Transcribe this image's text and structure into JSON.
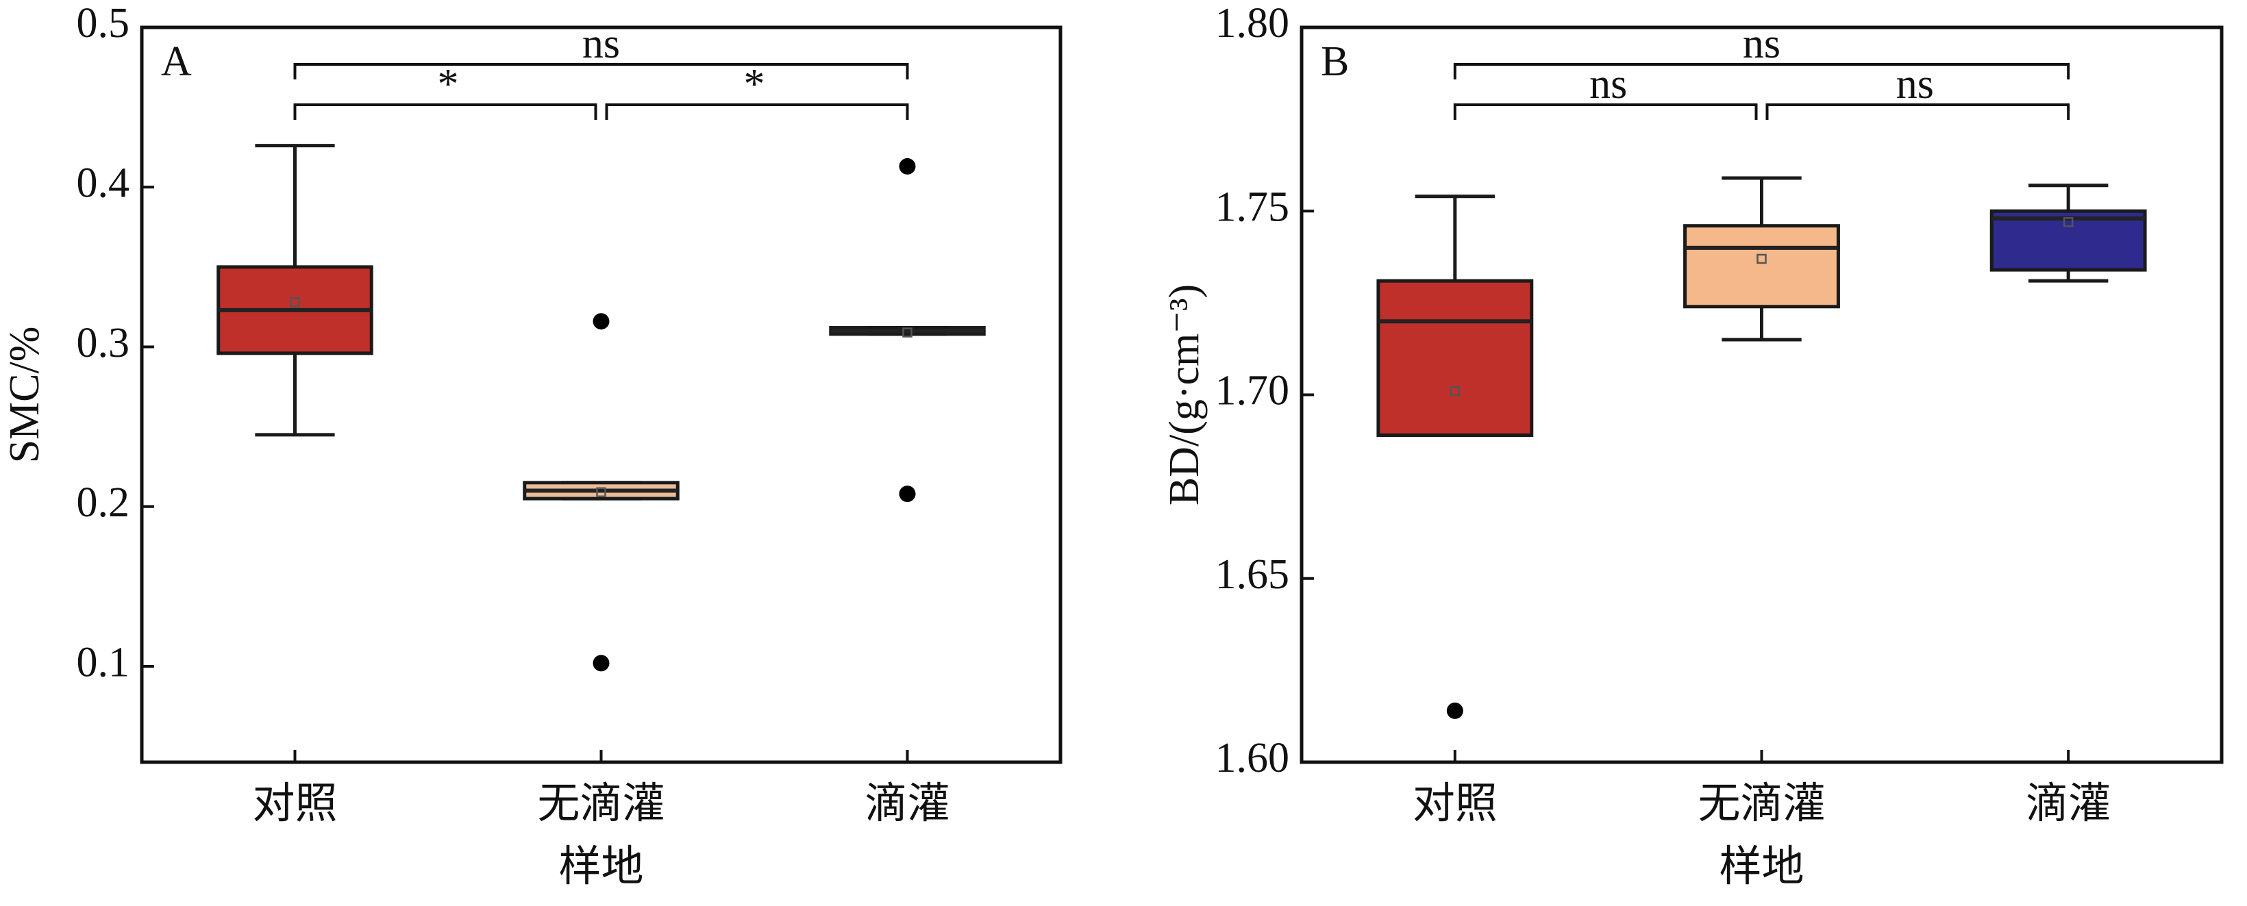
{
  "chart_data": [
    {
      "type": "box",
      "title": "A",
      "y_label": "SMC/%",
      "x_label": "样地",
      "categories": [
        "对照",
        "无滴灌",
        "滴灌"
      ],
      "colors": [
        "#c0302a",
        "#ebbc98",
        "#2e2a8e"
      ],
      "ylim": [
        0.04,
        0.5
      ],
      "yticks": [
        0.1,
        0.2,
        0.3,
        0.4,
        0.5
      ],
      "boxes": [
        {
          "whislo": 0.245,
          "q1": 0.296,
          "med": 0.323,
          "q3": 0.35,
          "whishi": 0.426,
          "mean": 0.328,
          "fliers": []
        },
        {
          "whislo": 0.205,
          "q1": 0.205,
          "med": 0.21,
          "q3": 0.215,
          "whishi": 0.215,
          "mean": 0.209,
          "fliers": [
            0.316,
            0.102
          ]
        },
        {
          "whislo": 0.308,
          "q1": 0.308,
          "med": 0.31,
          "q3": 0.312,
          "whishi": 0.312,
          "mean": 0.309,
          "fliers": [
            0.413,
            0.208
          ]
        }
      ],
      "brackets": [
        {
          "from": 0,
          "to": 2,
          "label": "ns"
        },
        {
          "from": 0,
          "to": 1,
          "label": "*"
        },
        {
          "from": 1,
          "to": 2,
          "label": "*"
        }
      ]
    },
    {
      "type": "box",
      "title": "B",
      "y_label": "BD/(g·cm⁻³)",
      "x_label": "样地",
      "categories": [
        "对照",
        "无滴灌",
        "滴灌"
      ],
      "colors": [
        "#c0302a",
        "#f5b88a",
        "#2e2a8e"
      ],
      "ylim": [
        1.6,
        1.8
      ],
      "yticks": [
        {
          "value": 1.6,
          "label": "1.60"
        },
        1.65,
        {
          "value": 1.7,
          "label": "1.70"
        },
        1.75,
        {
          "value": 1.8,
          "label": "1.80"
        }
      ],
      "boxes": [
        {
          "whislo": 1.689,
          "q1": 1.689,
          "med": 1.72,
          "q3": 1.731,
          "whishi": 1.754,
          "mean": 1.701,
          "fliers": [
            1.614
          ]
        },
        {
          "whislo": 1.715,
          "q1": 1.724,
          "med": 1.74,
          "q3": 1.746,
          "whishi": 1.759,
          "mean": 1.737,
          "fliers": []
        },
        {
          "whislo": 1.731,
          "q1": 1.734,
          "med": 1.748,
          "q3": 1.75,
          "whishi": 1.757,
          "mean": 1.747,
          "fliers": []
        }
      ],
      "brackets": [
        {
          "from": 0,
          "to": 2,
          "label": "ns"
        },
        {
          "from": 0,
          "to": 1,
          "label": "ns"
        },
        {
          "from": 1,
          "to": 2,
          "label": "ns"
        }
      ]
    }
  ]
}
